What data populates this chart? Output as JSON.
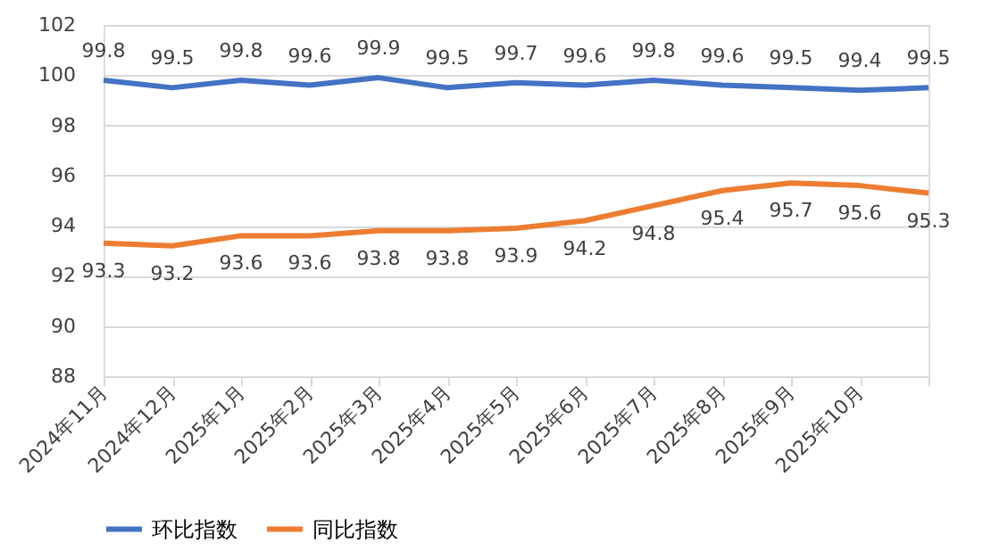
{
  "chart_data": {
    "type": "line",
    "categories": [
      "2024年11月",
      "2024年12月",
      "2025年1月",
      "2025年2月",
      "2025年3月",
      "2025年4月",
      "2025年5月",
      "2025年6月",
      "2025年7月",
      "2025年8月",
      "2025年9月",
      "2025年10月",
      null
    ],
    "series": [
      {
        "name": "环比指数",
        "color": "#4472c4",
        "values": [
          99.8,
          99.5,
          99.8,
          99.6,
          99.9,
          99.5,
          99.7,
          99.6,
          99.8,
          99.6,
          99.5,
          99.4,
          99.5
        ]
      },
      {
        "name": "同比指数",
        "color": "#ed7d31",
        "values": [
          93.3,
          93.2,
          93.6,
          93.6,
          93.8,
          93.8,
          93.9,
          94.2,
          94.8,
          95.4,
          95.7,
          95.6,
          95.3
        ]
      }
    ],
    "ylim": [
      88,
      102
    ],
    "yticks": [
      88,
      90,
      92,
      94,
      96,
      98,
      100,
      102
    ],
    "grid": "y",
    "legend": "bottom",
    "data_labels": true,
    "marker": "none",
    "line_style": "solid"
  }
}
